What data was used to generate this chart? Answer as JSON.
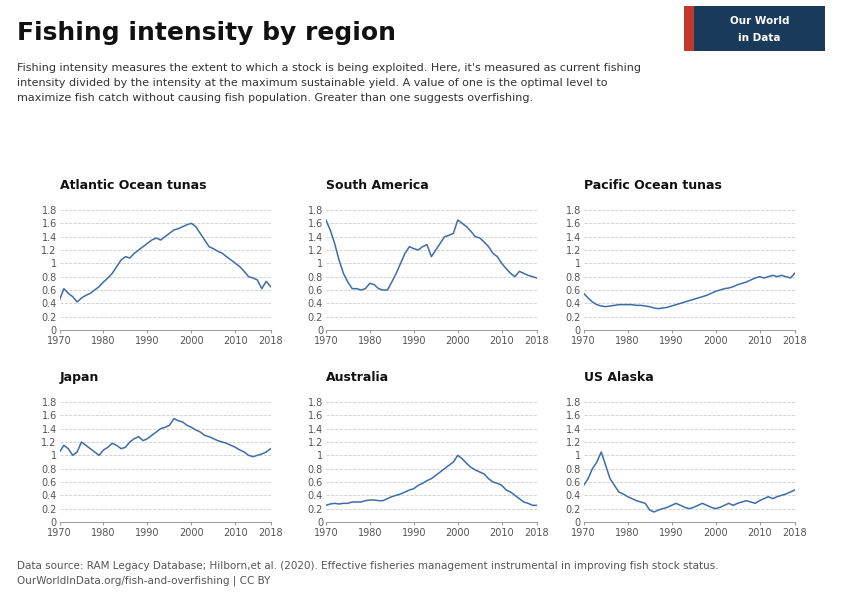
{
  "title": "Fishing intensity by region",
  "subtitle": "Fishing intensity measures the extent to which a stock is being exploited. Here, it's measured as current fishing\nintensity divided by the intensity at the maximum sustainable yield. A value of one is the optimal level to\nmaximize fish catch without causing fish population. Greater than one suggests overfishing.",
  "footnote": "Data source: RAM Legacy Database; Hilborn,et al. (2020). Effective fisheries management instrumental in improving fish stock status.\nOurWorldInData.org/fish-and-overfishing | CC BY",
  "line_color": "#3d6da8",
  "bg_color": "#ffffff",
  "grid_color": "#cccccc",
  "subplots": [
    {
      "title": "Atlantic Ocean tunas",
      "years": [
        1970,
        1971,
        1972,
        1973,
        1974,
        1975,
        1976,
        1977,
        1978,
        1979,
        1980,
        1981,
        1982,
        1983,
        1984,
        1985,
        1986,
        1987,
        1988,
        1989,
        1990,
        1991,
        1992,
        1993,
        1994,
        1995,
        1996,
        1997,
        1998,
        1999,
        2000,
        2001,
        2002,
        2003,
        2004,
        2005,
        2006,
        2007,
        2008,
        2009,
        2010,
        2011,
        2012,
        2013,
        2014,
        2015,
        2016,
        2017,
        2018
      ],
      "values": [
        0.45,
        0.62,
        0.55,
        0.5,
        0.42,
        0.48,
        0.52,
        0.55,
        0.6,
        0.65,
        0.72,
        0.78,
        0.85,
        0.95,
        1.05,
        1.1,
        1.08,
        1.15,
        1.2,
        1.25,
        1.3,
        1.35,
        1.38,
        1.35,
        1.4,
        1.45,
        1.5,
        1.52,
        1.55,
        1.58,
        1.6,
        1.55,
        1.45,
        1.35,
        1.25,
        1.22,
        1.18,
        1.15,
        1.1,
        1.05,
        1.0,
        0.95,
        0.88,
        0.8,
        0.78,
        0.75,
        0.62,
        0.73,
        0.65
      ]
    },
    {
      "title": "South America",
      "years": [
        1970,
        1971,
        1972,
        1973,
        1974,
        1975,
        1976,
        1977,
        1978,
        1979,
        1980,
        1981,
        1982,
        1983,
        1984,
        1985,
        1986,
        1987,
        1988,
        1989,
        1990,
        1991,
        1992,
        1993,
        1994,
        1995,
        1996,
        1997,
        1998,
        1999,
        2000,
        2001,
        2002,
        2003,
        2004,
        2005,
        2006,
        2007,
        2008,
        2009,
        2010,
        2011,
        2012,
        2013,
        2014,
        2015,
        2016,
        2017,
        2018
      ],
      "values": [
        1.65,
        1.5,
        1.3,
        1.05,
        0.85,
        0.72,
        0.62,
        0.62,
        0.6,
        0.62,
        0.7,
        0.68,
        0.62,
        0.6,
        0.6,
        0.72,
        0.85,
        1.0,
        1.15,
        1.25,
        1.22,
        1.2,
        1.25,
        1.28,
        1.1,
        1.2,
        1.3,
        1.4,
        1.42,
        1.45,
        1.65,
        1.6,
        1.55,
        1.48,
        1.4,
        1.38,
        1.32,
        1.25,
        1.15,
        1.1,
        1.0,
        0.92,
        0.85,
        0.8,
        0.88,
        0.85,
        0.82,
        0.8,
        0.78
      ]
    },
    {
      "title": "Pacific Ocean tunas",
      "years": [
        1970,
        1971,
        1972,
        1973,
        1974,
        1975,
        1976,
        1977,
        1978,
        1979,
        1980,
        1981,
        1982,
        1983,
        1984,
        1985,
        1986,
        1987,
        1988,
        1989,
        1990,
        1991,
        1992,
        1993,
        1994,
        1995,
        1996,
        1997,
        1998,
        1999,
        2000,
        2001,
        2002,
        2003,
        2004,
        2005,
        2006,
        2007,
        2008,
        2009,
        2010,
        2011,
        2012,
        2013,
        2014,
        2015,
        2016,
        2017,
        2018
      ],
      "values": [
        0.55,
        0.48,
        0.42,
        0.38,
        0.36,
        0.35,
        0.36,
        0.37,
        0.38,
        0.38,
        0.38,
        0.38,
        0.37,
        0.37,
        0.36,
        0.35,
        0.33,
        0.32,
        0.33,
        0.34,
        0.36,
        0.38,
        0.4,
        0.42,
        0.44,
        0.46,
        0.48,
        0.5,
        0.52,
        0.55,
        0.58,
        0.6,
        0.62,
        0.63,
        0.65,
        0.68,
        0.7,
        0.72,
        0.75,
        0.78,
        0.8,
        0.78,
        0.8,
        0.82,
        0.8,
        0.82,
        0.8,
        0.78,
        0.85
      ]
    },
    {
      "title": "Japan",
      "years": [
        1970,
        1971,
        1972,
        1973,
        1974,
        1975,
        1976,
        1977,
        1978,
        1979,
        1980,
        1981,
        1982,
        1983,
        1984,
        1985,
        1986,
        1987,
        1988,
        1989,
        1990,
        1991,
        1992,
        1993,
        1994,
        1995,
        1996,
        1997,
        1998,
        1999,
        2000,
        2001,
        2002,
        2003,
        2004,
        2005,
        2006,
        2007,
        2008,
        2009,
        2010,
        2011,
        2012,
        2013,
        2014,
        2015,
        2016,
        2017,
        2018
      ],
      "values": [
        1.05,
        1.15,
        1.1,
        1.0,
        1.05,
        1.2,
        1.15,
        1.1,
        1.05,
        1.0,
        1.08,
        1.12,
        1.18,
        1.15,
        1.1,
        1.12,
        1.2,
        1.25,
        1.28,
        1.22,
        1.25,
        1.3,
        1.35,
        1.4,
        1.42,
        1.45,
        1.55,
        1.52,
        1.5,
        1.45,
        1.42,
        1.38,
        1.35,
        1.3,
        1.28,
        1.25,
        1.22,
        1.2,
        1.18,
        1.15,
        1.12,
        1.08,
        1.05,
        1.0,
        0.98,
        1.0,
        1.02,
        1.05,
        1.1
      ]
    },
    {
      "title": "Australia",
      "years": [
        1970,
        1971,
        1972,
        1973,
        1974,
        1975,
        1976,
        1977,
        1978,
        1979,
        1980,
        1981,
        1982,
        1983,
        1984,
        1985,
        1986,
        1987,
        1988,
        1989,
        1990,
        1991,
        1992,
        1993,
        1994,
        1995,
        1996,
        1997,
        1998,
        1999,
        2000,
        2001,
        2002,
        2003,
        2004,
        2005,
        2006,
        2007,
        2008,
        2009,
        2010,
        2011,
        2012,
        2013,
        2014,
        2015,
        2016,
        2017,
        2018
      ],
      "values": [
        0.25,
        0.27,
        0.28,
        0.27,
        0.28,
        0.28,
        0.3,
        0.3,
        0.3,
        0.32,
        0.33,
        0.33,
        0.32,
        0.32,
        0.35,
        0.38,
        0.4,
        0.42,
        0.45,
        0.48,
        0.5,
        0.55,
        0.58,
        0.62,
        0.65,
        0.7,
        0.75,
        0.8,
        0.85,
        0.9,
        1.0,
        0.95,
        0.88,
        0.82,
        0.78,
        0.75,
        0.72,
        0.65,
        0.6,
        0.58,
        0.55,
        0.48,
        0.45,
        0.4,
        0.35,
        0.3,
        0.28,
        0.25,
        0.25
      ]
    },
    {
      "title": "US Alaska",
      "years": [
        1970,
        1971,
        1972,
        1973,
        1974,
        1975,
        1976,
        1977,
        1978,
        1979,
        1980,
        1981,
        1982,
        1983,
        1984,
        1985,
        1986,
        1987,
        1988,
        1989,
        1990,
        1991,
        1992,
        1993,
        1994,
        1995,
        1996,
        1997,
        1998,
        1999,
        2000,
        2001,
        2002,
        2003,
        2004,
        2005,
        2006,
        2007,
        2008,
        2009,
        2010,
        2011,
        2012,
        2013,
        2014,
        2015,
        2016,
        2017,
        2018
      ],
      "values": [
        0.55,
        0.65,
        0.8,
        0.9,
        1.05,
        0.85,
        0.65,
        0.55,
        0.45,
        0.42,
        0.38,
        0.35,
        0.32,
        0.3,
        0.28,
        0.18,
        0.15,
        0.18,
        0.2,
        0.22,
        0.25,
        0.28,
        0.25,
        0.22,
        0.2,
        0.22,
        0.25,
        0.28,
        0.25,
        0.22,
        0.2,
        0.22,
        0.25,
        0.28,
        0.25,
        0.28,
        0.3,
        0.32,
        0.3,
        0.28,
        0.32,
        0.35,
        0.38,
        0.35,
        0.38,
        0.4,
        0.42,
        0.45,
        0.48
      ]
    }
  ],
  "ylim": [
    0,
    1.8
  ],
  "yticks": [
    0,
    0.2,
    0.4,
    0.6,
    0.8,
    1.0,
    1.2,
    1.4,
    1.6,
    1.8
  ],
  "ytick_labels": [
    "0",
    "0.2",
    "0.4",
    "0.6",
    "0.8",
    "1",
    "1.2",
    "1.4",
    "1.6",
    "1.8"
  ],
  "xticks": [
    1970,
    1980,
    1990,
    2000,
    2010,
    2018
  ],
  "xtick_labels": [
    "1970",
    "1980",
    "1990",
    "2000",
    "2010",
    "2018"
  ],
  "logo_bg": "#1a3a5c",
  "logo_stripe": "#c0392b",
  "logo_line1": "Our World",
  "logo_line2": "in Data"
}
